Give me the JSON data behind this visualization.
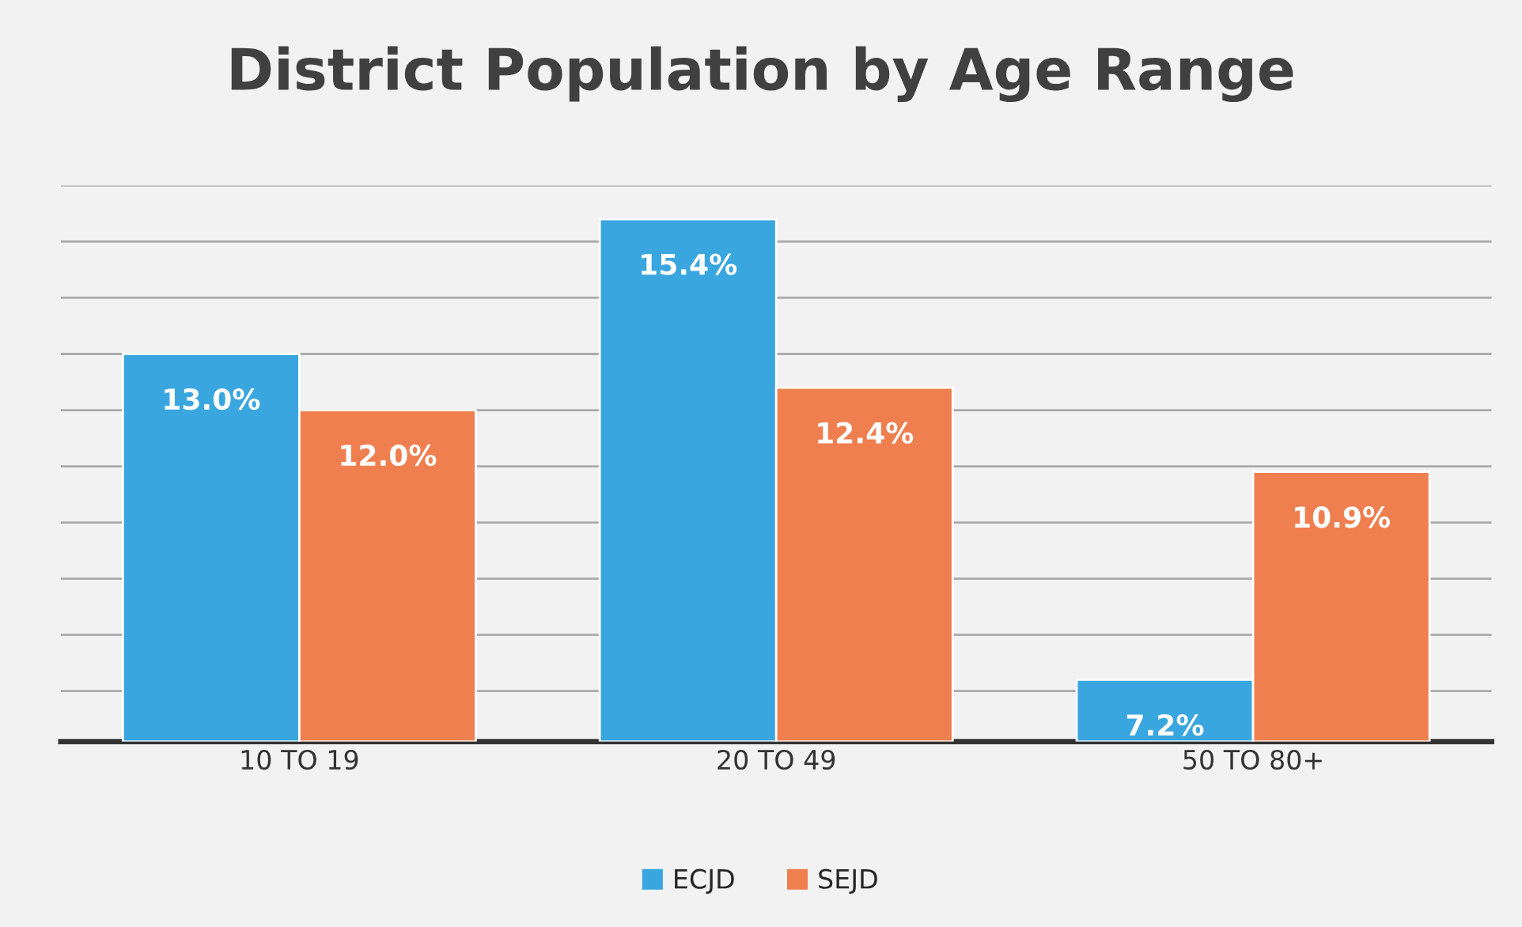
{
  "chart_data": {
    "type": "bar",
    "title": "District Population by Age Range",
    "categories": [
      "10 TO 19",
      "20 TO 49",
      "50 TO 80+"
    ],
    "series": [
      {
        "name": "ECJD",
        "color": "#3aa6e0",
        "values": [
          13.0,
          15.4,
          7.2
        ],
        "value_labels": [
          "13.0%",
          "15.4%",
          "7.2%"
        ]
      },
      {
        "name": "SEJD",
        "color": "#f07f4f",
        "values": [
          12.0,
          12.4,
          10.9
        ],
        "value_labels": [
          "12.0%",
          "12.4%",
          "10.9%"
        ]
      }
    ],
    "ylim": [
      6.1,
      16
    ],
    "yticks": [
      {
        "value": 7,
        "label": null
      },
      {
        "value": 8,
        "label": null
      },
      {
        "value": 9,
        "label": null
      },
      {
        "value": 10,
        "label": null
      },
      {
        "value": 11,
        "label": null
      },
      {
        "value": 12,
        "label": null
      },
      {
        "value": 13,
        "label": null
      },
      {
        "value": 14,
        "label": null
      },
      {
        "value": 15,
        "label": null
      },
      {
        "value": 16,
        "label": null
      }
    ],
    "tick_labels": "x",
    "grid": "y",
    "legend": "bottom"
  }
}
